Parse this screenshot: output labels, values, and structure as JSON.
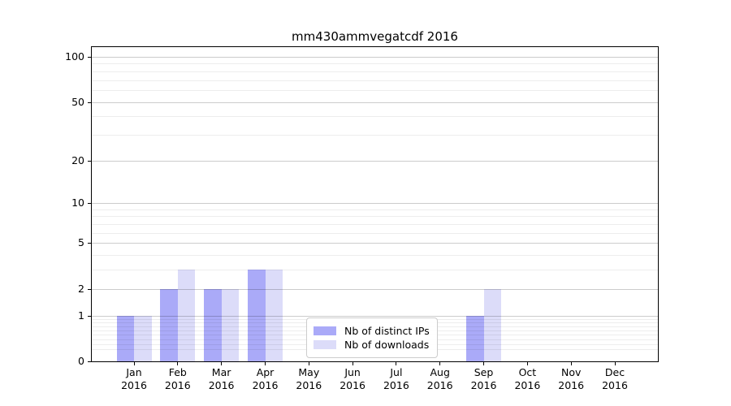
{
  "title": "mm430ammvegatcdf 2016",
  "legend": {
    "items": [
      {
        "label": "Nb of distinct IPs",
        "color": "#aaaaf8"
      },
      {
        "label": "Nb of downloads",
        "color": "#dcdcf9"
      }
    ]
  },
  "chart_data": {
    "type": "bar",
    "title": "mm430ammvegatcdf 2016",
    "categories": [
      "Jan",
      "Feb",
      "Mar",
      "Apr",
      "May",
      "Jun",
      "Jul",
      "Aug",
      "Sep",
      "Oct",
      "Nov",
      "Dec"
    ],
    "year_label": "2016",
    "series": [
      {
        "name": "Nb of distinct IPs",
        "color": "#aaaaf8",
        "values": [
          1,
          2,
          2,
          3,
          0,
          0,
          0,
          0,
          1,
          0,
          0,
          0
        ]
      },
      {
        "name": "Nb of downloads",
        "color": "#dcdcf9",
        "values": [
          1,
          3,
          2,
          3,
          0,
          0,
          0,
          0,
          2,
          0,
          0,
          0
        ]
      }
    ],
    "xlabel": "",
    "ylabel": "",
    "yscale": "log1p",
    "y_ticks": [
      0,
      1,
      2,
      5,
      10,
      20,
      50,
      100
    ],
    "y_minor_ticks": [
      0.2,
      0.3,
      0.4,
      0.5,
      0.6,
      0.7,
      0.8,
      0.9,
      3,
      4,
      6,
      7,
      8,
      9,
      30,
      40,
      60,
      70,
      80,
      90
    ],
    "ylim": [
      0,
      116
    ],
    "grid": "horizontal",
    "legend_position": "lower-center",
    "background": "#ffffff",
    "axis_color": "#000000"
  }
}
